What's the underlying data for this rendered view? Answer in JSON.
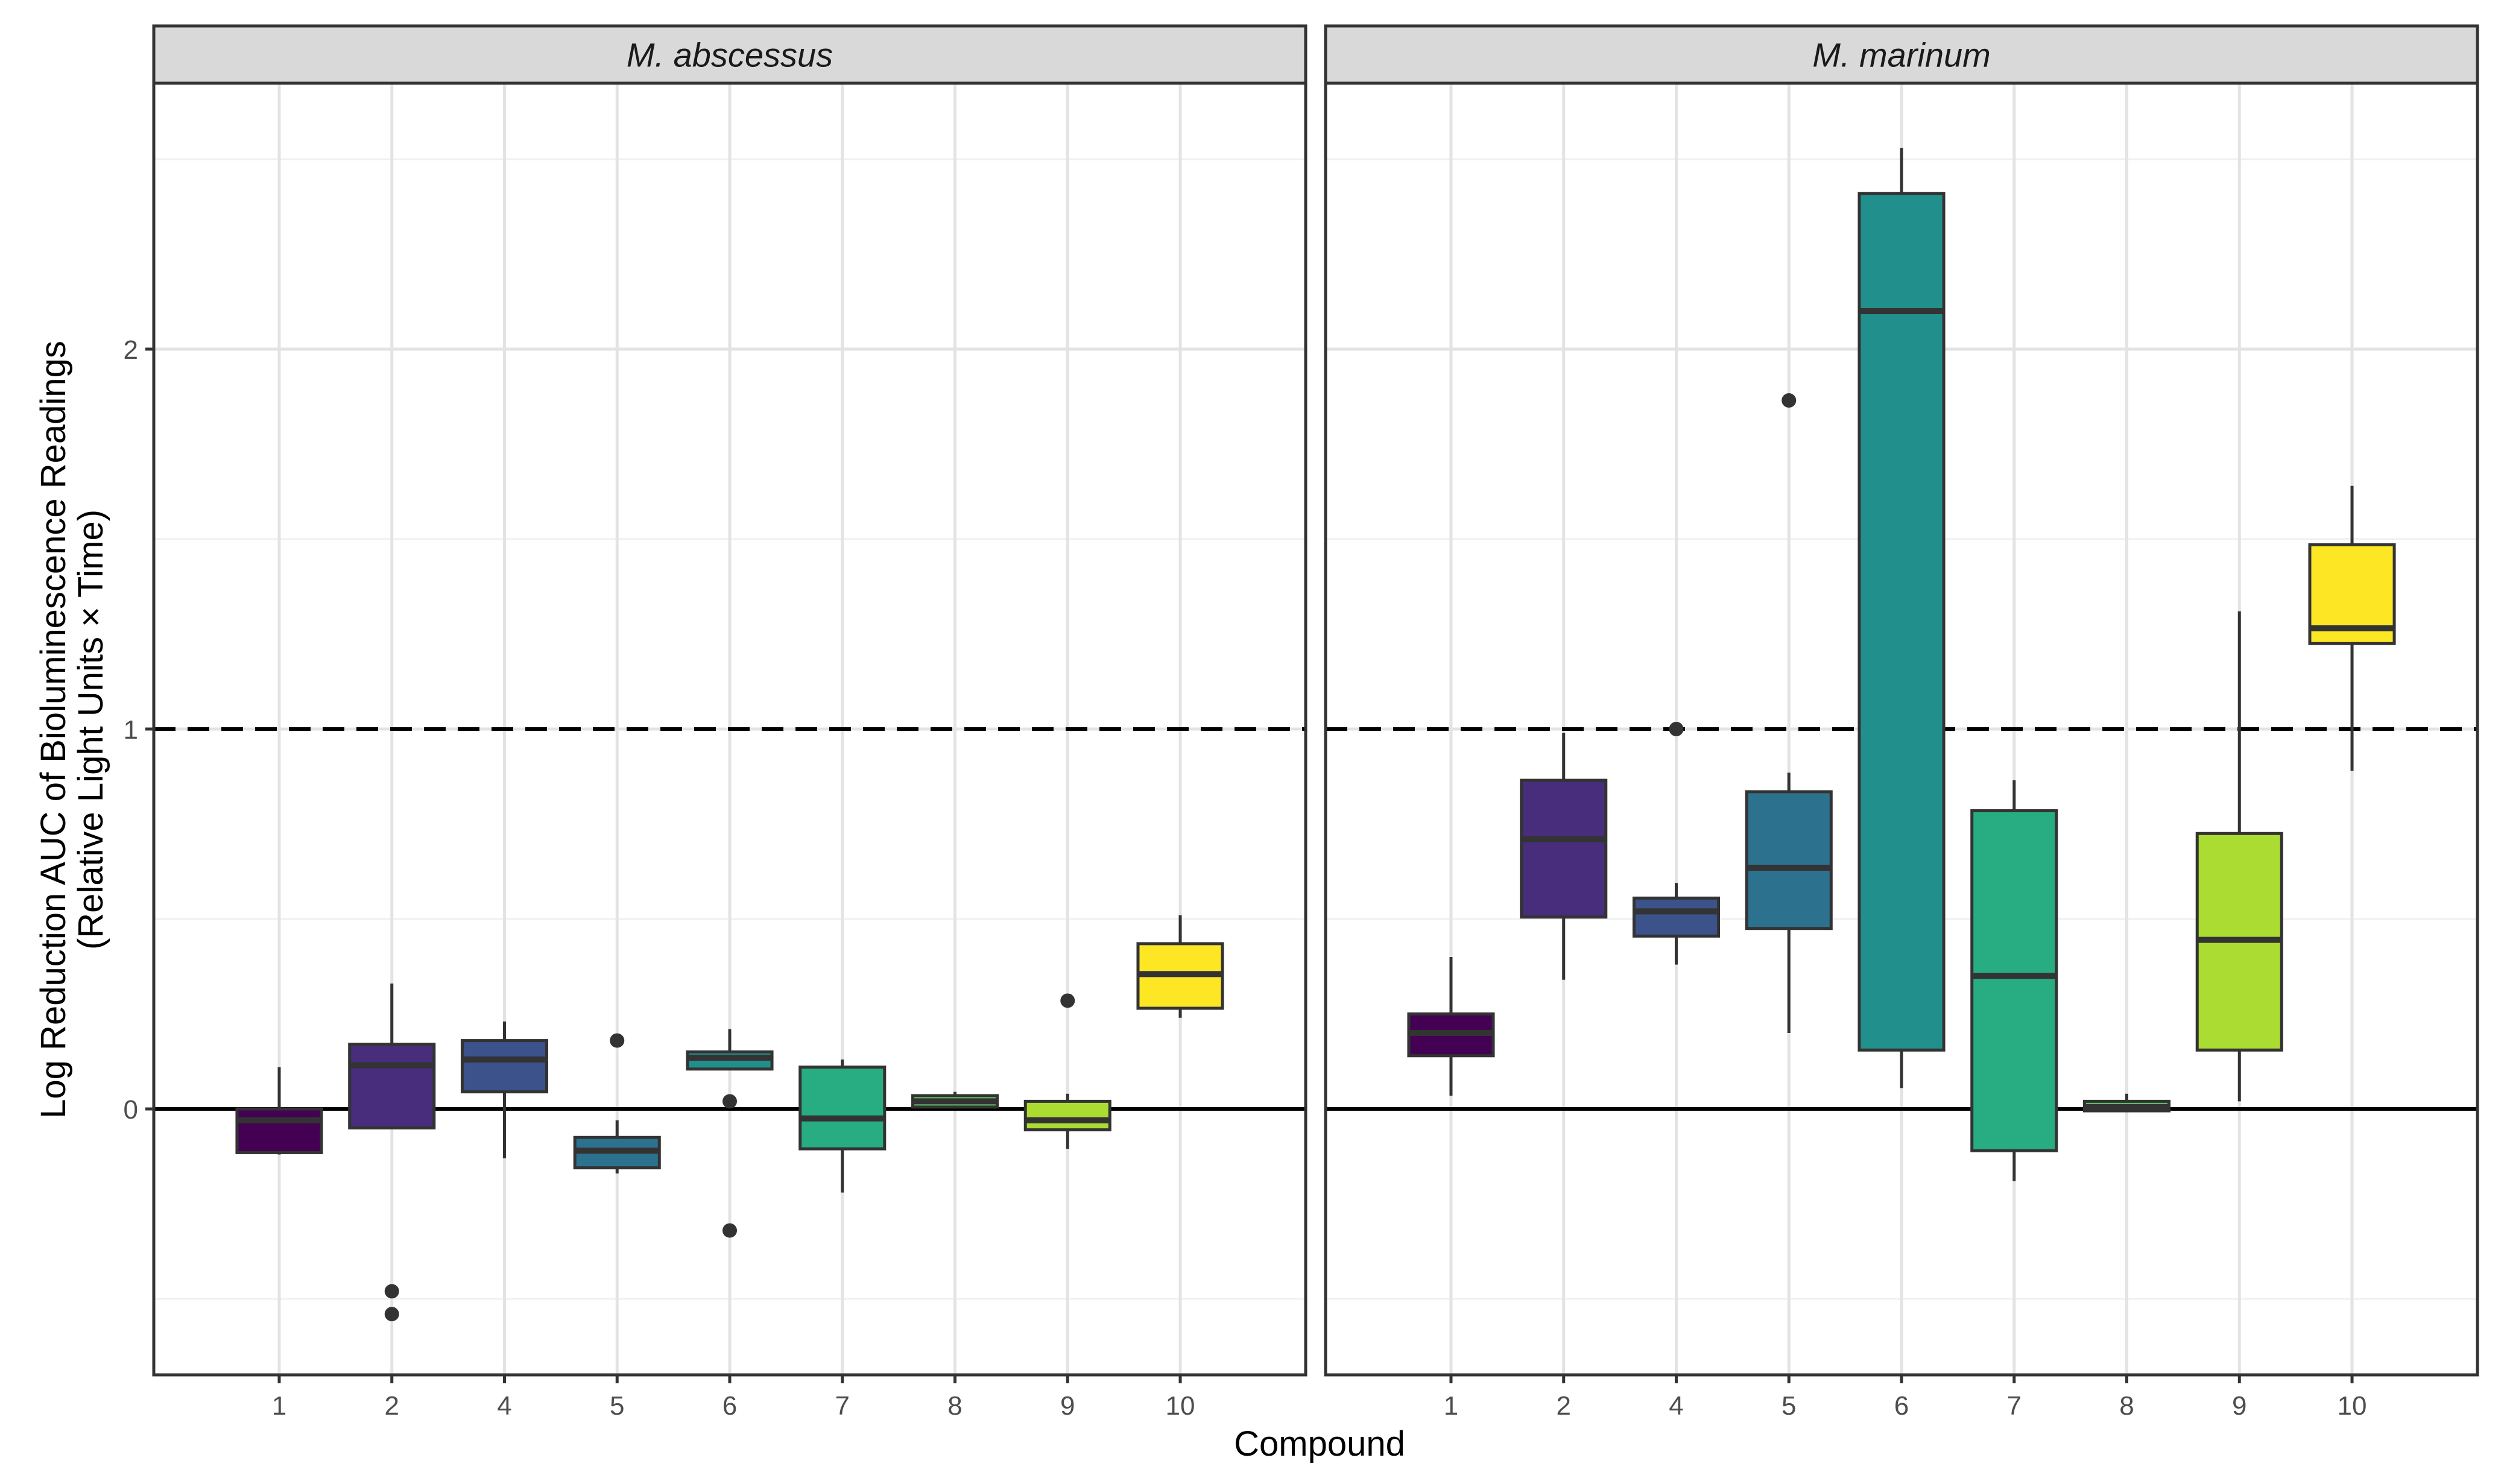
{
  "chart_data": {
    "type": "boxplot",
    "xlabel": "Compound",
    "ylabel_line1": "Log Reduction AUC of Bioluminescence Readings",
    "ylabel_line2": "(Relative Light Units × Time)",
    "ylim": [
      -0.7,
      2.7
    ],
    "y_ticks": [
      0,
      1,
      2
    ],
    "y_tick_labels": [
      "0",
      "1",
      "2"
    ],
    "reference_lines": [
      {
        "y": 0,
        "style": "solid"
      },
      {
        "y": 1,
        "style": "dashed"
      }
    ],
    "grid": true,
    "categories": [
      "1",
      "2",
      "4",
      "5",
      "6",
      "7",
      "8",
      "9",
      "10"
    ],
    "colors": [
      "#440154",
      "#472D7B",
      "#3B528B",
      "#2C728E",
      "#21908C",
      "#27AD81",
      "#5DC863",
      "#AADC32",
      "#FDE725"
    ],
    "panels": [
      {
        "title": "M. abscessus",
        "boxes": [
          {
            "compound": "1",
            "low": -0.12,
            "q1": -0.115,
            "median": -0.03,
            "q3": 0.0,
            "high": 0.11,
            "outliers": []
          },
          {
            "compound": "2",
            "low": -0.05,
            "q1": -0.05,
            "median": 0.115,
            "q3": 0.17,
            "high": 0.33,
            "outliers": [
              -0.48,
              -0.54
            ]
          },
          {
            "compound": "4",
            "low": -0.13,
            "q1": 0.045,
            "median": 0.13,
            "q3": 0.18,
            "high": 0.23,
            "outliers": []
          },
          {
            "compound": "5",
            "low": -0.17,
            "q1": -0.155,
            "median": -0.11,
            "q3": -0.075,
            "high": -0.03,
            "outliers": [
              0.18
            ]
          },
          {
            "compound": "6",
            "low": 0.105,
            "q1": 0.105,
            "median": 0.135,
            "q3": 0.15,
            "high": 0.21,
            "outliers": [
              0.02,
              -0.32
            ]
          },
          {
            "compound": "7",
            "low": -0.22,
            "q1": -0.105,
            "median": -0.025,
            "q3": 0.11,
            "high": 0.13,
            "outliers": []
          },
          {
            "compound": "8",
            "low": 0.005,
            "q1": 0.005,
            "median": 0.02,
            "q3": 0.035,
            "high": 0.045,
            "outliers": []
          },
          {
            "compound": "9",
            "low": -0.105,
            "q1": -0.055,
            "median": -0.03,
            "q3": 0.02,
            "high": 0.04,
            "outliers": [
              0.285
            ]
          },
          {
            "compound": "10",
            "low": 0.24,
            "q1": 0.265,
            "median": 0.355,
            "q3": 0.435,
            "high": 0.51,
            "outliers": []
          }
        ]
      },
      {
        "title": "M. marinum",
        "boxes": [
          {
            "compound": "1",
            "low": 0.035,
            "q1": 0.14,
            "median": 0.2,
            "q3": 0.25,
            "high": 0.4,
            "outliers": []
          },
          {
            "compound": "2",
            "low": 0.34,
            "q1": 0.505,
            "median": 0.71,
            "q3": 0.865,
            "high": 0.99,
            "outliers": []
          },
          {
            "compound": "4",
            "low": 0.38,
            "q1": 0.455,
            "median": 0.52,
            "q3": 0.555,
            "high": 0.595,
            "outliers": [
              1.0
            ]
          },
          {
            "compound": "5",
            "low": 0.2,
            "q1": 0.475,
            "median": 0.635,
            "q3": 0.835,
            "high": 0.885,
            "outliers": [
              1.865
            ]
          },
          {
            "compound": "6",
            "low": 0.055,
            "q1": 0.155,
            "median": 2.1,
            "q3": 2.41,
            "high": 2.53,
            "outliers": []
          },
          {
            "compound": "7",
            "low": -0.19,
            "q1": -0.11,
            "median": 0.35,
            "q3": 0.785,
            "high": 0.865,
            "outliers": []
          },
          {
            "compound": "8",
            "low": -0.005,
            "q1": -0.005,
            "median": 0.005,
            "q3": 0.02,
            "high": 0.04,
            "outliers": []
          },
          {
            "compound": "9",
            "low": 0.02,
            "q1": 0.155,
            "median": 0.445,
            "q3": 0.725,
            "high": 1.31,
            "outliers": []
          },
          {
            "compound": "10",
            "low": 0.89,
            "q1": 1.225,
            "median": 1.265,
            "q3": 1.485,
            "high": 1.64,
            "outliers": []
          }
        ]
      }
    ]
  }
}
